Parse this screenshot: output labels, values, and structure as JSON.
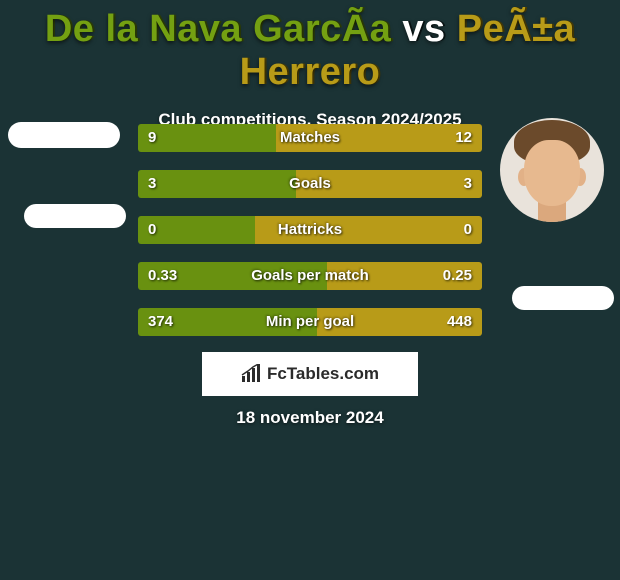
{
  "title": {
    "player1": "De la Nava GarcÃ­a",
    "vs": "vs",
    "player2": "PeÃ±a Herrero"
  },
  "subtitle": "Club competitions, Season 2024/2025",
  "colors": {
    "background": "#1b3335",
    "player1_accent": "#74a012",
    "player2_accent": "#b89b18",
    "bar_left": "#699110",
    "bar_right": "#b89b18",
    "text": "#ffffff"
  },
  "stats": [
    {
      "label": "Matches",
      "left_display": "9",
      "right_display": "12",
      "left_pct": 40,
      "right_pct": 60
    },
    {
      "label": "Goals",
      "left_display": "3",
      "right_display": "3",
      "left_pct": 46,
      "right_pct": 54
    },
    {
      "label": "Hattricks",
      "left_display": "0",
      "right_display": "0",
      "left_pct": 34,
      "right_pct": 66
    },
    {
      "label": "Goals per match",
      "left_display": "0.33",
      "right_display": "0.25",
      "left_pct": 55,
      "right_pct": 45
    },
    {
      "label": "Min per goal",
      "left_display": "374",
      "right_display": "448",
      "left_pct": 52,
      "right_pct": 48
    }
  ],
  "brand": {
    "text": "FcTables.com"
  },
  "date": "18 november 2024"
}
